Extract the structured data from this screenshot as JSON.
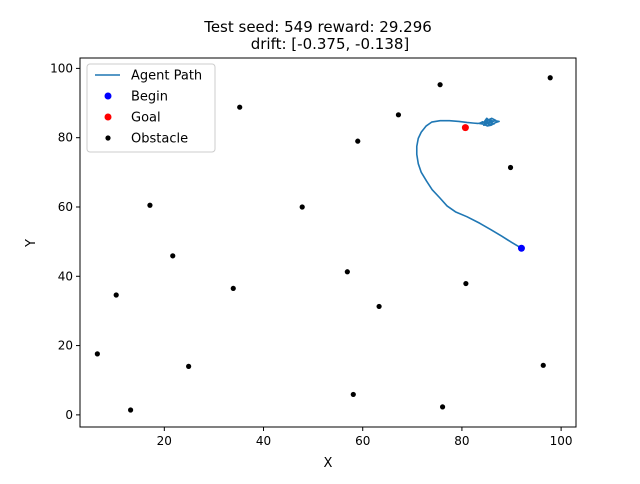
{
  "chart_data": {
    "type": "scatter",
    "title_line1": "Test seed: 549 reward: 29.296",
    "title_line2": "drift: [-0.375, -0.138]",
    "xlabel": "X",
    "ylabel": "Y",
    "xlim": [
      3,
      103
    ],
    "ylim": [
      -3.5,
      103
    ],
    "xticks": [
      20,
      40,
      60,
      80,
      100
    ],
    "yticks": [
      0,
      20,
      40,
      60,
      80,
      100
    ],
    "grid": false,
    "legend_position": "upper-left",
    "legend": [
      {
        "label": "Agent Path",
        "kind": "line",
        "color": "#1f77b4"
      },
      {
        "label": "Begin",
        "kind": "dot",
        "color": "#0000ff"
      },
      {
        "label": "Goal",
        "kind": "dot",
        "color": "#ff0000"
      },
      {
        "label": "Obstacle",
        "kind": "dot",
        "color": "#000000"
      }
    ],
    "begin": {
      "x": 92.0,
      "y": 48.1
    },
    "goal": {
      "x": 80.7,
      "y": 82.9
    },
    "path": [
      [
        92.0,
        48.1
      ],
      [
        90.0,
        49.8
      ],
      [
        88.0,
        51.6
      ],
      [
        85.8,
        53.5
      ],
      [
        83.6,
        55.3
      ],
      [
        81.0,
        57.2
      ],
      [
        78.7,
        58.6
      ],
      [
        77.0,
        60.3
      ],
      [
        75.5,
        62.7
      ],
      [
        74.0,
        65.0
      ],
      [
        72.9,
        67.4
      ],
      [
        71.8,
        70.0
      ],
      [
        71.2,
        72.5
      ],
      [
        70.9,
        75.2
      ],
      [
        70.9,
        77.5
      ],
      [
        71.2,
        79.8
      ],
      [
        71.8,
        81.6
      ],
      [
        72.8,
        83.4
      ],
      [
        73.9,
        84.5
      ],
      [
        75.6,
        84.9
      ],
      [
        77.5,
        84.9
      ],
      [
        79.4,
        84.7
      ],
      [
        81.0,
        84.4
      ],
      [
        82.4,
        84.2
      ],
      [
        83.2,
        84.1
      ],
      [
        84.0,
        84.3
      ],
      [
        84.8,
        84.6
      ],
      [
        85.2,
        84.1
      ],
      [
        84.4,
        83.6
      ],
      [
        84.9,
        84.9
      ],
      [
        85.6,
        85.3
      ],
      [
        86.2,
        84.8
      ],
      [
        85.4,
        84.2
      ],
      [
        84.6,
        84.8
      ],
      [
        85.0,
        85.6
      ],
      [
        85.8,
        84.6
      ],
      [
        86.6,
        84.9
      ],
      [
        87.5,
        84.7
      ],
      [
        86.7,
        84.3
      ],
      [
        85.9,
        83.6
      ],
      [
        85.1,
        83.4
      ],
      [
        84.4,
        83.9
      ],
      [
        83.5,
        84.1
      ],
      [
        84.2,
        84.6
      ],
      [
        85.0,
        84.0
      ],
      [
        85.8,
        84.3
      ],
      [
        86.5,
        84.0
      ],
      [
        85.6,
        83.7
      ],
      [
        84.6,
        84.4
      ],
      [
        85.3,
        85.1
      ],
      [
        86.0,
        85.6
      ],
      [
        86.8,
        85.0
      ],
      [
        86.0,
        84.5
      ],
      [
        85.1,
        84.6
      ]
    ],
    "obstacles": [
      {
        "x": 6.5,
        "y": 17.6
      },
      {
        "x": 13.2,
        "y": 1.4
      },
      {
        "x": 10.3,
        "y": 34.6
      },
      {
        "x": 17.1,
        "y": 60.5
      },
      {
        "x": 21.7,
        "y": 45.9
      },
      {
        "x": 24.9,
        "y": 14.0
      },
      {
        "x": 33.9,
        "y": 36.5
      },
      {
        "x": 35.2,
        "y": 88.8
      },
      {
        "x": 47.8,
        "y": 60.0
      },
      {
        "x": 56.9,
        "y": 41.3
      },
      {
        "x": 58.1,
        "y": 5.9
      },
      {
        "x": 59.0,
        "y": 79.0
      },
      {
        "x": 63.3,
        "y": 31.3
      },
      {
        "x": 67.2,
        "y": 86.6
      },
      {
        "x": 75.6,
        "y": 95.3
      },
      {
        "x": 76.1,
        "y": 2.3
      },
      {
        "x": 80.8,
        "y": 37.9
      },
      {
        "x": 89.8,
        "y": 71.4
      },
      {
        "x": 96.4,
        "y": 14.3
      },
      {
        "x": 97.8,
        "y": 97.3
      }
    ]
  }
}
